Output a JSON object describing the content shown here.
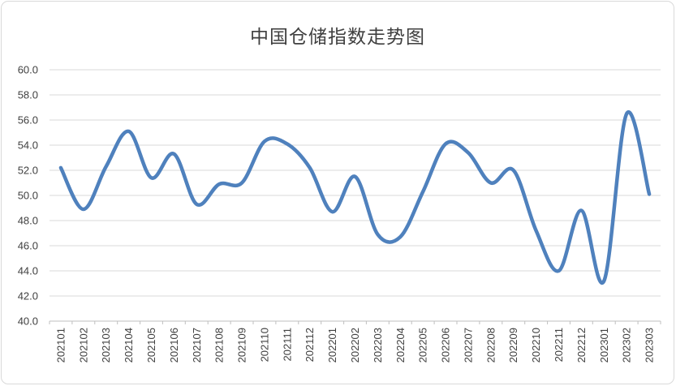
{
  "chart_data": {
    "type": "line",
    "title": "中国仓储指数走势图",
    "categories": [
      "202101",
      "202102",
      "202103",
      "202104",
      "202105",
      "202106",
      "202107",
      "202108",
      "202109",
      "202110",
      "202111",
      "202112",
      "202201",
      "202202",
      "202203",
      "202204",
      "202205",
      "202206",
      "202207",
      "202208",
      "202209",
      "202210",
      "202211",
      "202212",
      "202301",
      "202302",
      "202303"
    ],
    "values": [
      52.2,
      48.9,
      52.3,
      55.1,
      51.4,
      53.3,
      49.3,
      50.9,
      51.0,
      54.3,
      54.1,
      52.2,
      48.7,
      51.5,
      46.9,
      46.7,
      50.3,
      54.1,
      53.4,
      51.0,
      52.0,
      47.2,
      44.0,
      48.8,
      43.2,
      56.5,
      50.1
    ],
    "ylim": [
      40.0,
      60.0
    ],
    "ytick_step": 2.0,
    "ytick_labels": [
      "60.0",
      "58.0",
      "56.0",
      "54.0",
      "52.0",
      "50.0",
      "48.0",
      "46.0",
      "44.0",
      "42.0",
      "40.0"
    ],
    "xlabel": "",
    "ylabel": "",
    "grid": true,
    "legend": "none",
    "smooth": true,
    "line_color": "#4F81BD",
    "line_width": 4.5,
    "gridline_color": "#d9d9d9",
    "axis_color": "#bfbfbf",
    "tick_label_color": "#404040",
    "title_color": "#3f3f3f",
    "frame_border_color": "#d9d9d9",
    "background": "#ffffff"
  }
}
